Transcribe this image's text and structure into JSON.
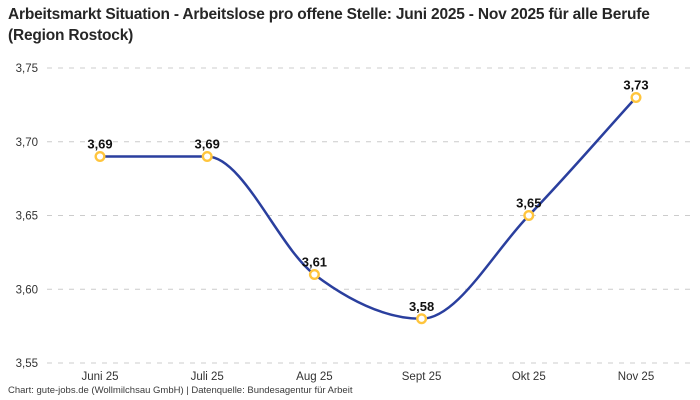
{
  "header": {
    "title": "Arbeitsmarkt Situation - Arbeitslose pro offene Stelle: Juni 2025 - Nov 2025 für alle Berufe (Region Rostock)"
  },
  "footer": {
    "credit": "Chart: gute-jobs.de (Wollmilchsau GmbH) | Datenquelle: Bundesagentur für Arbeit"
  },
  "chart_data": {
    "type": "line",
    "title": "Arbeitsmarkt Situation - Arbeitslose pro offene Stelle: Juni 2025 - Nov 2025 für alle Berufe (Region Rostock)",
    "xlabel": "",
    "ylabel": "",
    "categories": [
      "Juni 25",
      "Juli 25",
      "Aug 25",
      "Sept 25",
      "Okt 25",
      "Nov 25"
    ],
    "values": [
      3.69,
      3.69,
      3.61,
      3.58,
      3.65,
      3.73
    ],
    "point_labels": [
      "3,69",
      "3,69",
      "3,61",
      "3,58",
      "3,65",
      "3,73"
    ],
    "y_tick_values": [
      3.75,
      3.7,
      3.65,
      3.6,
      3.55
    ],
    "y_tick_labels": [
      "3,75",
      "3,70",
      "3,65",
      "3,60",
      "3,55"
    ],
    "ylim": [
      3.55,
      3.75
    ],
    "grid": "horizontal-dashed",
    "legend": "none",
    "colors": {
      "line": "#2a3f9e",
      "marker_ring": "#ffc53d",
      "marker_fill": "#ffffff",
      "gridline": "#cccccc",
      "tick_text": "#333333",
      "point_label_text": "#111111",
      "title_text": "#262626",
      "credit_text": "#3a3a3a",
      "background": "#ffffff"
    }
  }
}
